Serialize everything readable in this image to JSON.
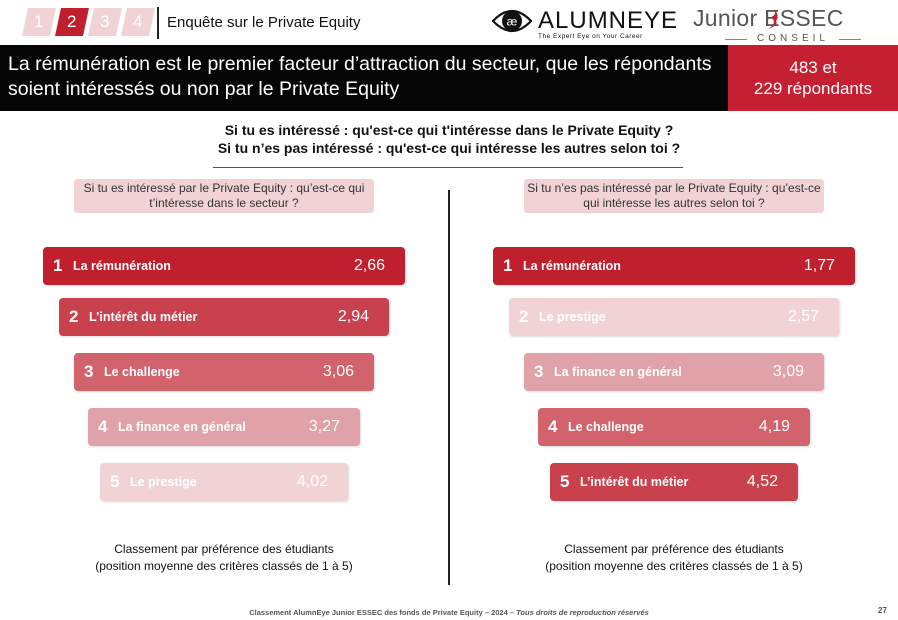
{
  "header": {
    "steps": [
      "1",
      "2",
      "3",
      "4"
    ],
    "active_step": 1,
    "survey_title": "Enquête sur le Private Equity",
    "alumneye": {
      "name": "ALUMNEYE",
      "tagline": "The Expert Eye on Your Career"
    },
    "junior": {
      "name": "Junior ESSEC",
      "sub": "CONSEIL"
    }
  },
  "banner": {
    "headline_line1": "La rémunération est le premier facteur d’attraction du secteur, que les répondants",
    "headline_line2": "soient intéressés ou non par le Private Equity",
    "respondents_line1": "483 et",
    "respondents_line2": "229 répondants"
  },
  "questions": {
    "line1": "Si tu es intéressé : qu'est-ce qui t'intéresse dans le Private Equity ?",
    "line2": "Si tu n’es pas intéressé : qu'est-ce qui intéresse les autres selon toi ?"
  },
  "chart_data": [
    {
      "type": "bar",
      "title": "Si tu es intéressé par le Private Equity : qu’est-ce qui t’intéresse dans le secteur ?",
      "ranks": [
        "1",
        "2",
        "3",
        "4",
        "5"
      ],
      "categories": [
        "La rémunération",
        "L’intérêt du métier",
        "Le challenge",
        "La finance en général",
        "Le prestige"
      ],
      "values": [
        "2,66",
        "2,94",
        "3,06",
        "3,27",
        "4,02"
      ],
      "colors": [
        "#c0202e",
        "#c8414d",
        "#d2636c",
        "#e1a1a8",
        "#f1d3d6"
      ],
      "caption_line1": "Classement par préférence des étudiants",
      "caption_line2": "(position moyenne des critères classés de 1 à 5)"
    },
    {
      "type": "bar",
      "title": "Si tu n’es pas intéressé par le Private Equity : qu’est-ce qui intéresse les autres selon toi ?",
      "ranks": [
        "1",
        "2",
        "3",
        "4",
        "5"
      ],
      "categories": [
        "La rémunération",
        "Le prestige",
        "La finance en général",
        "Le challenge",
        "L’intérêt du métier"
      ],
      "values": [
        "1,77",
        "2,57",
        "3,09",
        "4,19",
        "4,52"
      ],
      "colors": [
        "#c0202e",
        "#f1d3d6",
        "#e1a1a8",
        "#d2636c",
        "#c8414d"
      ],
      "caption_line1": "Classement par préférence des étudiants",
      "caption_line2": "(position moyenne des critères classés de 1 à 5)"
    }
  ],
  "footer": {
    "text": "Classement AlumnEye Junior ESSEC des fonds de Private Equity – 2024 – ",
    "rights": "Tous droits de reproduction réservés",
    "page": "27"
  }
}
